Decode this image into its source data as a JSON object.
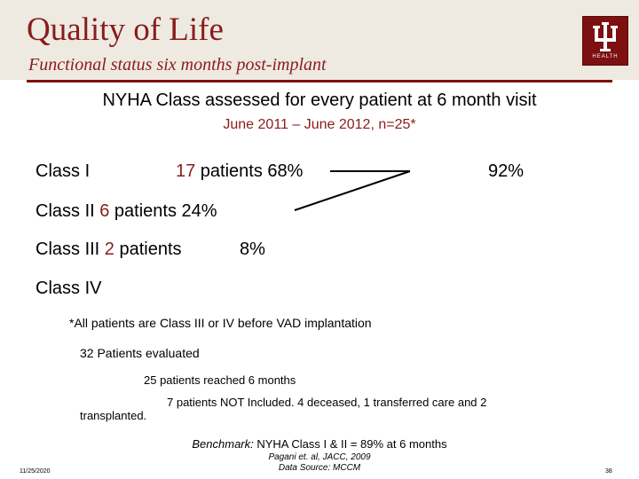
{
  "header": {
    "title": "Quality of Life",
    "subtitle": "Functional status six months post-implant",
    "logo_text": "HEALTH"
  },
  "main": {
    "heading": "NYHA Class assessed for every patient at 6 month visit",
    "subheading": "June 2011 – June 2012, n=25*",
    "class1": {
      "label": "Class I",
      "count": "17",
      "suffix": " patients  68%"
    },
    "combined_pct": "92%",
    "class2": {
      "label": "Class II ",
      "count": "6",
      "suffix": " patients   24%"
    },
    "class3": {
      "label": "Class III ",
      "count": "2",
      "suffix": " patients",
      "pct": "8%"
    },
    "class4": {
      "label": "Class IV"
    },
    "footnote": "*All patients are Class III or IV before VAD implantation",
    "evaluated": "32 Patients evaluated",
    "reached": "25 patients reached 6 months",
    "not_included_1": "7 patients NOT Included.  4 deceased, 1 transferred care and 2",
    "not_included_2": "transplanted.",
    "benchmark_label": "Benchmark:",
    "benchmark_text": " NYHA Class I & II = 89% at 6 months",
    "ref_1": "Pagani et. al, JACC, 2009",
    "ref_2": "Data Source: MCCM"
  },
  "footer": {
    "date": "11/25/2020",
    "page": "38"
  },
  "colors": {
    "accent": "#8a1c1c",
    "header_bg": "#eeeae2"
  }
}
